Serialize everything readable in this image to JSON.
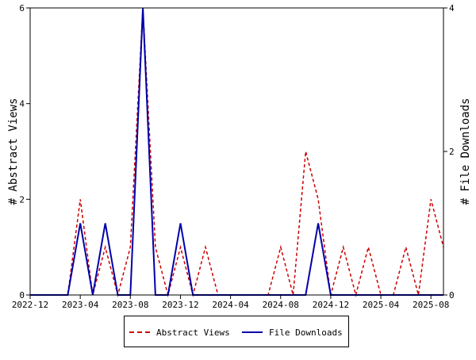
{
  "chart_data": {
    "type": "line",
    "x_ticks": [
      "2022-12",
      "2023-04",
      "2023-08",
      "2023-12",
      "2024-04",
      "2024-08",
      "2024-12",
      "2025-04",
      "2025-08"
    ],
    "x_start": "2022-12",
    "x_end": "2025-09",
    "y_left": {
      "label": "# Abstract Views",
      "lim": [
        0,
        6
      ],
      "ticks": [
        "0",
        "2",
        "4",
        "6"
      ]
    },
    "y_right": {
      "label": "# File Downloads",
      "lim": [
        0,
        4
      ],
      "ticks": [
        "0",
        "2",
        "4"
      ]
    },
    "grid": false,
    "legend_position": "bottom",
    "series": [
      {
        "name": "Abstract Views",
        "axis": "left",
        "color": "#cc0000",
        "dash": "dashed",
        "points": [
          [
            "2022-12",
            0
          ],
          [
            "2023-01",
            0
          ],
          [
            "2023-02",
            0
          ],
          [
            "2023-03",
            0
          ],
          [
            "2023-04",
            2
          ],
          [
            "2023-05",
            0
          ],
          [
            "2023-06",
            1
          ],
          [
            "2023-07",
            0
          ],
          [
            "2023-08",
            1
          ],
          [
            "2023-09",
            6
          ],
          [
            "2023-10",
            1
          ],
          [
            "2023-11",
            0
          ],
          [
            "2023-12",
            1
          ],
          [
            "2024-01",
            0
          ],
          [
            "2024-02",
            1
          ],
          [
            "2024-03",
            0
          ],
          [
            "2024-04",
            0
          ],
          [
            "2024-05",
            0
          ],
          [
            "2024-06",
            0
          ],
          [
            "2024-07",
            0
          ],
          [
            "2024-08",
            1
          ],
          [
            "2024-09",
            0
          ],
          [
            "2024-10",
            3
          ],
          [
            "2024-11",
            2
          ],
          [
            "2024-12",
            0
          ],
          [
            "2025-01",
            1
          ],
          [
            "2025-02",
            0
          ],
          [
            "2025-03",
            1
          ],
          [
            "2025-04",
            0
          ],
          [
            "2025-05",
            0
          ],
          [
            "2025-06",
            1
          ],
          [
            "2025-07",
            0
          ],
          [
            "2025-08",
            2
          ],
          [
            "2025-09",
            1
          ]
        ]
      },
      {
        "name": "File Downloads",
        "axis": "right",
        "color": "#0000aa",
        "dash": "solid",
        "points": [
          [
            "2022-12",
            0
          ],
          [
            "2023-01",
            0
          ],
          [
            "2023-02",
            0
          ],
          [
            "2023-03",
            0
          ],
          [
            "2023-04",
            1
          ],
          [
            "2023-05",
            0
          ],
          [
            "2023-06",
            1
          ],
          [
            "2023-07",
            0
          ],
          [
            "2023-08",
            0
          ],
          [
            "2023-09",
            4
          ],
          [
            "2023-10",
            0
          ],
          [
            "2023-11",
            0
          ],
          [
            "2023-12",
            1
          ],
          [
            "2024-01",
            0
          ],
          [
            "2024-02",
            0
          ],
          [
            "2024-03",
            0
          ],
          [
            "2024-04",
            0
          ],
          [
            "2024-05",
            0
          ],
          [
            "2024-06",
            0
          ],
          [
            "2024-07",
            0
          ],
          [
            "2024-08",
            0
          ],
          [
            "2024-09",
            0
          ],
          [
            "2024-10",
            0
          ],
          [
            "2024-11",
            1
          ],
          [
            "2024-12",
            0
          ],
          [
            "2025-01",
            0
          ],
          [
            "2025-02",
            0
          ],
          [
            "2025-03",
            0
          ],
          [
            "2025-04",
            0
          ],
          [
            "2025-05",
            0
          ],
          [
            "2025-06",
            0
          ],
          [
            "2025-07",
            0
          ],
          [
            "2025-08",
            0
          ],
          [
            "2025-09",
            0
          ]
        ]
      }
    ]
  }
}
